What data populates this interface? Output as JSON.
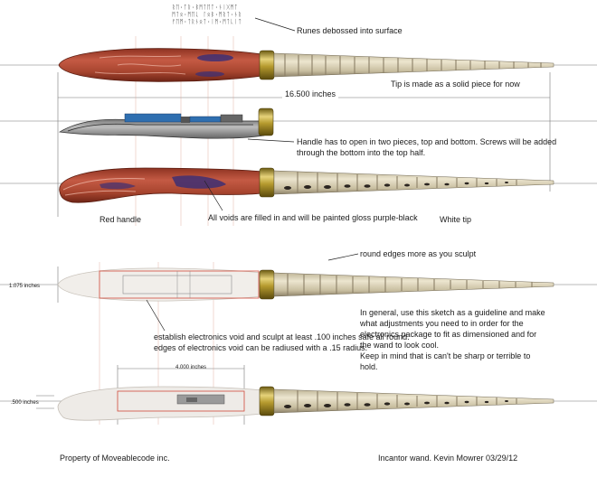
{
  "runes": [
    "ᚱᛖ·ᛏᚱ·ᛒᛗᛏᛖᛏ·ᚾᛁᚷᛗᛏ",
    "ᛗᛏᛟ·ᛗᛖᚳ ᛚᛟᛒ·ᛗᚱᛏ·ᚾᚱ",
    "ᚠᛖᛗ·ᛏᚱᚾᛟᛏ·ᛁᛗ·ᛗᛏᚳᛁᛏ"
  ],
  "labels": {
    "runes_note": "Runes debossed into surface",
    "tip_note": "Tip is made as a solid piece for now",
    "overall_length": "16.500 inches",
    "handle_note_line1": "Handle has to open in two pieces, top and bottom. Screws will be added",
    "handle_note_line2": "through the bottom into the top half.",
    "red_handle": "Red handle",
    "voids_note": "All voids are filled in and will be painted gloss purple-black",
    "white_tip": "White tip",
    "round_edges": "round edges more as you sculpt",
    "dim_1075": "1.075 inches",
    "dim_4000": "4.000 inches",
    "dim_500": ".500 inches",
    "void_note_line1": "establish electronics void and sculpt at least .100 inches safe all round.",
    "void_note_line2": "edges of electronics void can be radiused with a .15 radius.",
    "general_note": [
      "In general, use this sketch as a guideline and make",
      "what adjustments you need to in order for the",
      "electronics package to fit as dimensioned and for",
      "the wand to look cool.",
      "Keep in mind that is can't be sharp or terrible to",
      "hold."
    ],
    "property": "Property of Moveablecode inc.",
    "credit": "Incantor wand.  Kevin Mowrer 03/29/12"
  },
  "colors": {
    "handle_red": "#b04a34",
    "handle_dark": "#7e2a1c",
    "void_purple": "#3e2f73",
    "brass": "#b59a2e",
    "bone": "#d9d0b4",
    "bone_shadow": "#8a7f66",
    "sketch_red": "#d04a3a",
    "electronics_blue": "#2f6fb0"
  }
}
